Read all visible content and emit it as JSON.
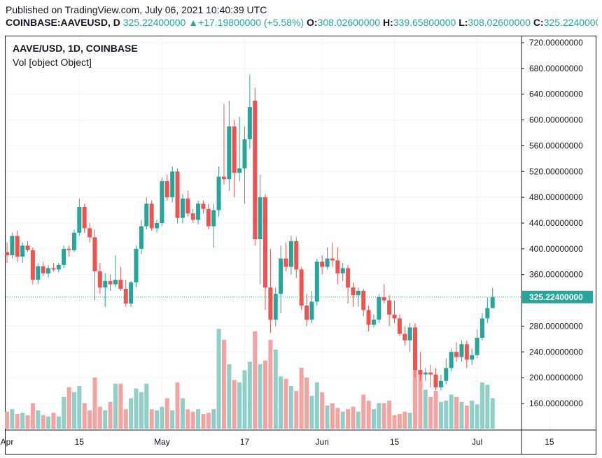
{
  "header": {
    "published": "Published on TradingView.com, July 06, 2021 10:40:39 UTC",
    "symbol": "COINBASE:AAVEUSD, D",
    "last": "325.22400000",
    "change_arrow": "▲",
    "change": "+17.19800000 (+5.58%)",
    "open_label": "O:",
    "open": "308.02600000",
    "high_label": "H:",
    "high": "339.65800000",
    "low_label": "L:",
    "low": "308.02600000",
    "close_label": "C:",
    "close": "325.22400000"
  },
  "legend": {
    "title": "AAVE/USD, 1D, COINBASE",
    "volume": "Vol [object Object]"
  },
  "colors": {
    "up": "#26a69a",
    "down": "#ef5350",
    "up_vol": "#8fcfc7",
    "down_vol": "#f5a3a1",
    "grid": "#f0f3fa",
    "price_tag": "#26a69a"
  },
  "chart_data": {
    "type": "candlestick",
    "y_range": [
      120,
      730
    ],
    "y_ticks": [
      {
        "value": 720,
        "label": "720.00000000"
      },
      {
        "value": 680,
        "label": "680.00000000"
      },
      {
        "value": 640,
        "label": "640.00000000"
      },
      {
        "value": 600,
        "label": "600.00000000"
      },
      {
        "value": 560,
        "label": "560.00000000"
      },
      {
        "value": 520,
        "label": "520.00000000"
      },
      {
        "value": 480,
        "label": "480.00000000"
      },
      {
        "value": 440,
        "label": "440.00000000"
      },
      {
        "value": 400,
        "label": "400.00000000"
      },
      {
        "value": 360,
        "label": "360.00000000"
      },
      {
        "value": 280,
        "label": "280.00000000"
      },
      {
        "value": 240,
        "label": "240.00000000"
      },
      {
        "value": 200,
        "label": "200.00000000"
      },
      {
        "value": 160,
        "label": "160.00000000"
      }
    ],
    "x_ticks": [
      {
        "index": 0,
        "label": "Apr"
      },
      {
        "index": 14,
        "label": "15"
      },
      {
        "index": 30,
        "label": "May"
      },
      {
        "index": 46,
        "label": "17"
      },
      {
        "index": 61,
        "label": "Jun"
      },
      {
        "index": 75,
        "label": "15"
      },
      {
        "index": 91,
        "label": "Jul"
      },
      {
        "index": 105,
        "label": "15"
      }
    ],
    "last_price": 325.224,
    "last_price_label": "325.22400000",
    "candles": [
      {
        "o": 395,
        "h": 410,
        "l": 378,
        "c": 390,
        "v": 1.4
      },
      {
        "o": 390,
        "h": 425,
        "l": 385,
        "c": 420,
        "v": 1.6
      },
      {
        "o": 420,
        "h": 428,
        "l": 380,
        "c": 388,
        "v": 1.2
      },
      {
        "o": 388,
        "h": 410,
        "l": 378,
        "c": 405,
        "v": 1.3
      },
      {
        "o": 405,
        "h": 412,
        "l": 395,
        "c": 398,
        "v": 1.1
      },
      {
        "o": 398,
        "h": 402,
        "l": 345,
        "c": 352,
        "v": 2.1
      },
      {
        "o": 352,
        "h": 378,
        "l": 345,
        "c": 373,
        "v": 1.5
      },
      {
        "o": 373,
        "h": 380,
        "l": 358,
        "c": 362,
        "v": 1.1
      },
      {
        "o": 362,
        "h": 375,
        "l": 355,
        "c": 370,
        "v": 1.0
      },
      {
        "o": 370,
        "h": 378,
        "l": 365,
        "c": 368,
        "v": 1.3
      },
      {
        "o": 368,
        "h": 378,
        "l": 364,
        "c": 375,
        "v": 1.0
      },
      {
        "o": 375,
        "h": 405,
        "l": 370,
        "c": 400,
        "v": 2.6
      },
      {
        "o": 400,
        "h": 405,
        "l": 388,
        "c": 398,
        "v": 3.4
      },
      {
        "o": 398,
        "h": 430,
        "l": 395,
        "c": 425,
        "v": 3.0
      },
      {
        "o": 425,
        "h": 478,
        "l": 420,
        "c": 465,
        "v": 3.5
      },
      {
        "o": 465,
        "h": 470,
        "l": 425,
        "c": 432,
        "v": 2.1
      },
      {
        "o": 432,
        "h": 440,
        "l": 410,
        "c": 418,
        "v": 1.5
      },
      {
        "o": 418,
        "h": 430,
        "l": 320,
        "c": 365,
        "v": 4.2
      },
      {
        "o": 365,
        "h": 378,
        "l": 330,
        "c": 340,
        "v": 1.8
      },
      {
        "o": 340,
        "h": 362,
        "l": 310,
        "c": 350,
        "v": 1.5
      },
      {
        "o": 350,
        "h": 360,
        "l": 335,
        "c": 345,
        "v": 2.2
      },
      {
        "o": 345,
        "h": 390,
        "l": 340,
        "c": 352,
        "v": 3.7
      },
      {
        "o": 352,
        "h": 372,
        "l": 335,
        "c": 338,
        "v": 3.7
      },
      {
        "o": 338,
        "h": 352,
        "l": 310,
        "c": 315,
        "v": 1.6
      },
      {
        "o": 315,
        "h": 350,
        "l": 310,
        "c": 348,
        "v": 2.5
      },
      {
        "o": 348,
        "h": 405,
        "l": 340,
        "c": 400,
        "v": 3.3
      },
      {
        "o": 400,
        "h": 445,
        "l": 392,
        "c": 435,
        "v": 3.0
      },
      {
        "o": 435,
        "h": 480,
        "l": 430,
        "c": 470,
        "v": 3.7
      },
      {
        "o": 470,
        "h": 475,
        "l": 428,
        "c": 432,
        "v": 1.6
      },
      {
        "o": 432,
        "h": 445,
        "l": 425,
        "c": 440,
        "v": 1.5
      },
      {
        "o": 440,
        "h": 510,
        "l": 435,
        "c": 505,
        "v": 1.8
      },
      {
        "o": 505,
        "h": 515,
        "l": 475,
        "c": 480,
        "v": 2.5
      },
      {
        "o": 480,
        "h": 528,
        "l": 472,
        "c": 520,
        "v": 1.5
      },
      {
        "o": 520,
        "h": 525,
        "l": 440,
        "c": 448,
        "v": 3.8
      },
      {
        "o": 448,
        "h": 485,
        "l": 440,
        "c": 478,
        "v": 2.5
      },
      {
        "o": 478,
        "h": 490,
        "l": 450,
        "c": 455,
        "v": 1.6
      },
      {
        "o": 455,
        "h": 462,
        "l": 440,
        "c": 445,
        "v": 1.4
      },
      {
        "o": 445,
        "h": 475,
        "l": 438,
        "c": 470,
        "v": 1.6
      },
      {
        "o": 470,
        "h": 475,
        "l": 455,
        "c": 462,
        "v": 1.2
      },
      {
        "o": 462,
        "h": 470,
        "l": 430,
        "c": 435,
        "v": 1.3
      },
      {
        "o": 435,
        "h": 470,
        "l": 402,
        "c": 460,
        "v": 1.6
      },
      {
        "o": 460,
        "h": 528,
        "l": 450,
        "c": 512,
        "v": 8.2
      },
      {
        "o": 512,
        "h": 625,
        "l": 500,
        "c": 508,
        "v": 7.3
      },
      {
        "o": 508,
        "h": 630,
        "l": 490,
        "c": 590,
        "v": 5.3
      },
      {
        "o": 590,
        "h": 600,
        "l": 480,
        "c": 518,
        "v": 4.0
      },
      {
        "o": 518,
        "h": 605,
        "l": 505,
        "c": 525,
        "v": 3.8
      },
      {
        "o": 525,
        "h": 590,
        "l": 470,
        "c": 570,
        "v": 4.8
      },
      {
        "o": 570,
        "h": 670,
        "l": 555,
        "c": 620,
        "v": 5.5
      },
      {
        "o": 630,
        "h": 650,
        "l": 405,
        "c": 415,
        "v": 8.0
      },
      {
        "o": 415,
        "h": 515,
        "l": 345,
        "c": 480,
        "v": 5.3
      },
      {
        "o": 480,
        "h": 485,
        "l": 305,
        "c": 340,
        "v": 5.6
      },
      {
        "o": 340,
        "h": 400,
        "l": 270,
        "c": 290,
        "v": 7.3
      },
      {
        "o": 290,
        "h": 340,
        "l": 280,
        "c": 330,
        "v": 6.5
      },
      {
        "o": 330,
        "h": 405,
        "l": 300,
        "c": 385,
        "v": 4.3
      },
      {
        "o": 385,
        "h": 410,
        "l": 365,
        "c": 372,
        "v": 4.1
      },
      {
        "o": 372,
        "h": 420,
        "l": 360,
        "c": 412,
        "v": 3.5
      },
      {
        "o": 412,
        "h": 418,
        "l": 355,
        "c": 368,
        "v": 3.1
      },
      {
        "o": 368,
        "h": 372,
        "l": 305,
        "c": 312,
        "v": 5.0
      },
      {
        "o": 312,
        "h": 330,
        "l": 280,
        "c": 290,
        "v": 4.2
      },
      {
        "o": 290,
        "h": 335,
        "l": 285,
        "c": 318,
        "v": 2.7
      },
      {
        "o": 318,
        "h": 385,
        "l": 312,
        "c": 380,
        "v": 3.8
      },
      {
        "o": 380,
        "h": 390,
        "l": 360,
        "c": 372,
        "v": 3.0
      },
      {
        "o": 372,
        "h": 402,
        "l": 368,
        "c": 385,
        "v": 1.9
      },
      {
        "o": 385,
        "h": 410,
        "l": 372,
        "c": 382,
        "v": 2.1
      },
      {
        "o": 382,
        "h": 402,
        "l": 345,
        "c": 362,
        "v": 1.7
      },
      {
        "o": 362,
        "h": 378,
        "l": 350,
        "c": 370,
        "v": 1.4
      },
      {
        "o": 370,
        "h": 375,
        "l": 315,
        "c": 340,
        "v": 1.6
      },
      {
        "o": 340,
        "h": 348,
        "l": 310,
        "c": 328,
        "v": 1.8
      },
      {
        "o": 328,
        "h": 340,
        "l": 310,
        "c": 335,
        "v": 1.4
      },
      {
        "o": 335,
        "h": 338,
        "l": 295,
        "c": 305,
        "v": 2.8
      },
      {
        "o": 305,
        "h": 312,
        "l": 272,
        "c": 282,
        "v": 2.3
      },
      {
        "o": 282,
        "h": 298,
        "l": 278,
        "c": 290,
        "v": 1.6
      },
      {
        "o": 290,
        "h": 330,
        "l": 285,
        "c": 325,
        "v": 2.1
      },
      {
        "o": 325,
        "h": 345,
        "l": 315,
        "c": 320,
        "v": 2.1
      },
      {
        "o": 320,
        "h": 328,
        "l": 280,
        "c": 298,
        "v": 2.3
      },
      {
        "o": 298,
        "h": 320,
        "l": 285,
        "c": 292,
        "v": 1.1
      },
      {
        "o": 292,
        "h": 298,
        "l": 265,
        "c": 268,
        "v": 1.2
      },
      {
        "o": 268,
        "h": 280,
        "l": 250,
        "c": 258,
        "v": 1.4
      },
      {
        "o": 258,
        "h": 285,
        "l": 240,
        "c": 278,
        "v": 1.3
      },
      {
        "o": 278,
        "h": 285,
        "l": 200,
        "c": 212,
        "v": 5.1
      },
      {
        "o": 212,
        "h": 240,
        "l": 195,
        "c": 205,
        "v": 4.8
      },
      {
        "o": 205,
        "h": 215,
        "l": 195,
        "c": 208,
        "v": 3.2
      },
      {
        "o": 208,
        "h": 220,
        "l": 185,
        "c": 205,
        "v": 2.6
      },
      {
        "o": 205,
        "h": 215,
        "l": 180,
        "c": 185,
        "v": 3.1
      },
      {
        "o": 185,
        "h": 205,
        "l": 180,
        "c": 195,
        "v": 2.2
      },
      {
        "o": 195,
        "h": 230,
        "l": 190,
        "c": 215,
        "v": 2.3
      },
      {
        "o": 215,
        "h": 245,
        "l": 210,
        "c": 240,
        "v": 2.8
      },
      {
        "o": 240,
        "h": 255,
        "l": 225,
        "c": 232,
        "v": 2.6
      },
      {
        "o": 232,
        "h": 258,
        "l": 225,
        "c": 252,
        "v": 2.2
      },
      {
        "o": 252,
        "h": 258,
        "l": 215,
        "c": 228,
        "v": 1.9
      },
      {
        "o": 228,
        "h": 245,
        "l": 220,
        "c": 235,
        "v": 2.3
      },
      {
        "o": 235,
        "h": 275,
        "l": 230,
        "c": 262,
        "v": 2.0
      },
      {
        "o": 262,
        "h": 300,
        "l": 258,
        "c": 292,
        "v": 3.8
      },
      {
        "o": 292,
        "h": 325,
        "l": 285,
        "c": 308,
        "v": 3.6
      },
      {
        "o": 308,
        "h": 339.658,
        "l": 308,
        "c": 325.224,
        "v": 2.5
      }
    ]
  }
}
